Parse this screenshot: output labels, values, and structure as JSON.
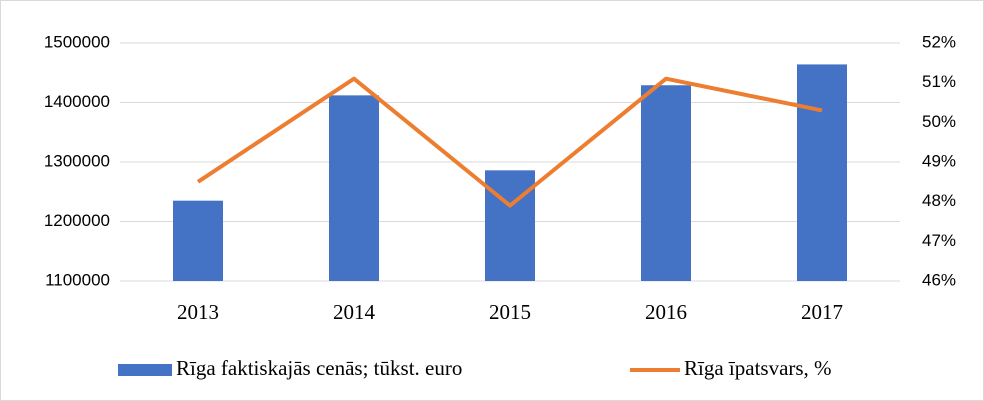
{
  "chart_data": {
    "type": "bar-line",
    "categories": [
      "2013",
      "2014",
      "2015",
      "2016",
      "2017"
    ],
    "series": [
      {
        "name": "Rīga faktiskajās cenās; tūkst. euro",
        "type": "bar",
        "color": "#4472c4",
        "values": [
          1235000,
          1412000,
          1286000,
          1429000,
          1464000
        ]
      },
      {
        "name": "Rīga īpatsvars, %",
        "type": "line",
        "axis": "y2",
        "color": "#ed7d31",
        "values": [
          48.5,
          51.1,
          47.9,
          51.1,
          50.3
        ]
      }
    ],
    "ylim": [
      1100000,
      1500000
    ],
    "yticks": [
      1100000,
      1200000,
      1300000,
      1400000,
      1500000
    ],
    "y2lim": [
      46,
      52
    ],
    "y2ticks": [
      {
        "value": 46,
        "label": "46%"
      },
      {
        "value": 47,
        "label": "47%"
      },
      {
        "value": 48,
        "label": "48%"
      },
      {
        "value": 49,
        "label": "49%"
      },
      {
        "value": 50,
        "label": "50%"
      },
      {
        "value": 51,
        "label": "51%"
      },
      {
        "value": 52,
        "label": "52%"
      }
    ],
    "grid": true,
    "legend": "bottom"
  }
}
